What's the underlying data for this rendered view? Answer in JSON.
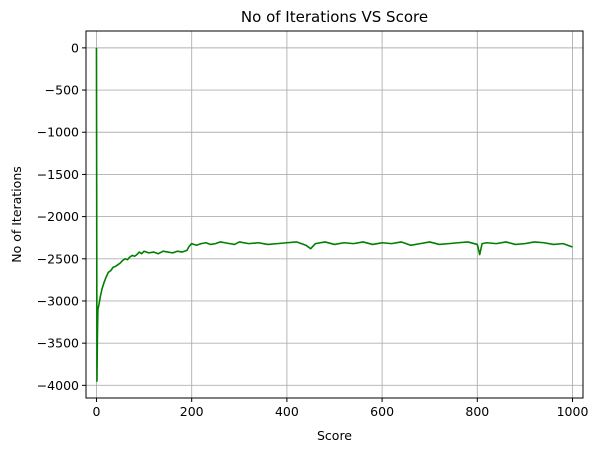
{
  "chart_data": {
    "type": "line",
    "title": "No of Iterations VS Score",
    "xlabel": "Score",
    "ylabel": "No of Iterations",
    "xlim": [
      -22,
      1022
    ],
    "ylim": [
      -4150,
      200
    ],
    "x_ticks": [
      0,
      200,
      400,
      600,
      800,
      1000
    ],
    "y_ticks": [
      0,
      -500,
      -1000,
      -1500,
      -2000,
      -2500,
      -3000,
      -3500,
      -4000
    ],
    "x_tick_labels": [
      "0",
      "200",
      "400",
      "600",
      "800",
      "1000"
    ],
    "y_tick_labels": [
      "0",
      "−500",
      "−1000",
      "−1500",
      "−2000",
      "−2500",
      "−3000",
      "−3500",
      "−4000"
    ],
    "grid": true,
    "colors": {
      "line": "#008000",
      "grid": "#b0b0b0",
      "axes": "#000000"
    },
    "series": [
      {
        "x": [
          0,
          1,
          2,
          3,
          5,
          8,
          12,
          16,
          20,
          25,
          30,
          35,
          40,
          45,
          50,
          55,
          60,
          65,
          70,
          75,
          80,
          85,
          90,
          95,
          100,
          110,
          120,
          130,
          140,
          150,
          160,
          170,
          180,
          190,
          195,
          200,
          210,
          220,
          230,
          240,
          250,
          260,
          270,
          280,
          290,
          300,
          320,
          340,
          360,
          380,
          400,
          420,
          440,
          450,
          460,
          480,
          500,
          520,
          540,
          560,
          580,
          600,
          620,
          640,
          660,
          680,
          700,
          720,
          740,
          760,
          780,
          800,
          805,
          810,
          820,
          840,
          860,
          880,
          900,
          920,
          940,
          960,
          980,
          1000
        ],
        "y": [
          0,
          -3950,
          -3400,
          -3100,
          -3050,
          -2950,
          -2850,
          -2780,
          -2720,
          -2660,
          -2640,
          -2600,
          -2590,
          -2570,
          -2550,
          -2520,
          -2500,
          -2510,
          -2480,
          -2460,
          -2470,
          -2450,
          -2420,
          -2440,
          -2410,
          -2430,
          -2420,
          -2440,
          -2410,
          -2420,
          -2430,
          -2410,
          -2420,
          -2400,
          -2350,
          -2320,
          -2340,
          -2320,
          -2310,
          -2330,
          -2320,
          -2300,
          -2310,
          -2320,
          -2330,
          -2300,
          -2320,
          -2310,
          -2330,
          -2320,
          -2310,
          -2300,
          -2340,
          -2380,
          -2320,
          -2300,
          -2330,
          -2310,
          -2320,
          -2300,
          -2330,
          -2310,
          -2320,
          -2300,
          -2340,
          -2320,
          -2300,
          -2330,
          -2320,
          -2310,
          -2300,
          -2330,
          -2450,
          -2320,
          -2310,
          -2320,
          -2300,
          -2330,
          -2320,
          -2300,
          -2310,
          -2330,
          -2320,
          -2360
        ]
      }
    ]
  }
}
